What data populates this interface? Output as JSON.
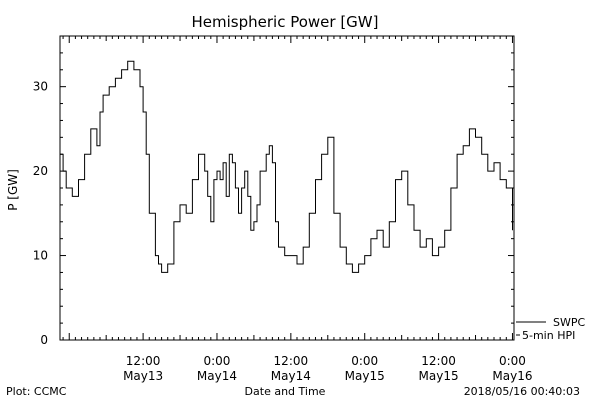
{
  "chart_data": {
    "type": "line",
    "title": "Hemispheric Power [GW]",
    "xlabel": "Date and Time",
    "ylabel": "P [GW]",
    "ylim": [
      0,
      36
    ],
    "yticks": [
      0,
      10,
      20,
      30
    ],
    "xlim": [
      "2018-05-12 22:30",
      "2018-05-16 00:15"
    ],
    "xticks": [
      {
        "t": "2018-05-13 12:00",
        "line1": "12:00",
        "line2": "May13"
      },
      {
        "t": "2018-05-14 00:00",
        "line1": "0:00",
        "line2": "May14"
      },
      {
        "t": "2018-05-14 12:00",
        "line1": "12:00",
        "line2": "May14"
      },
      {
        "t": "2018-05-15 00:00",
        "line1": "0:00",
        "line2": "May15"
      },
      {
        "t": "2018-05-15 12:00",
        "line1": "12:00",
        "line2": "May15"
      },
      {
        "t": "2018-05-16 00:00",
        "line1": "0:00",
        "line2": "May16"
      }
    ],
    "grid": false,
    "legend": {
      "placement": "bottom-right",
      "entries": [
        "SWPC",
        "5-min HPI"
      ]
    },
    "series": [
      {
        "name": "SWPC",
        "style": "step",
        "x": [
          "2018-05-12 22:30",
          "2018-05-12 23:00",
          "2018-05-12 23:30",
          "2018-05-13 00:30",
          "2018-05-13 01:30",
          "2018-05-13 02:30",
          "2018-05-13 03:30",
          "2018-05-13 04:30",
          "2018-05-13 05:00",
          "2018-05-13 05:30",
          "2018-05-13 06:30",
          "2018-05-13 07:30",
          "2018-05-13 08:30",
          "2018-05-13 09:30",
          "2018-05-13 10:30",
          "2018-05-13 11:30",
          "2018-05-13 12:00",
          "2018-05-13 12:30",
          "2018-05-13 13:00",
          "2018-05-13 14:00",
          "2018-05-13 14:30",
          "2018-05-13 15:00",
          "2018-05-13 16:00",
          "2018-05-13 17:00",
          "2018-05-13 18:00",
          "2018-05-13 19:00",
          "2018-05-13 20:00",
          "2018-05-13 21:00",
          "2018-05-13 22:00",
          "2018-05-13 22:30",
          "2018-05-13 23:00",
          "2018-05-13 23:30",
          "2018-05-14 00:00",
          "2018-05-14 00:30",
          "2018-05-14 01:00",
          "2018-05-14 01:30",
          "2018-05-14 02:00",
          "2018-05-14 02:30",
          "2018-05-14 03:00",
          "2018-05-14 03:30",
          "2018-05-14 04:00",
          "2018-05-14 04:30",
          "2018-05-14 05:00",
          "2018-05-14 05:30",
          "2018-05-14 06:00",
          "2018-05-14 06:30",
          "2018-05-14 07:00",
          "2018-05-14 08:00",
          "2018-05-14 08:30",
          "2018-05-14 09:00",
          "2018-05-14 09:30",
          "2018-05-14 10:00",
          "2018-05-14 11:00",
          "2018-05-14 12:00",
          "2018-05-14 13:00",
          "2018-05-14 14:00",
          "2018-05-14 15:00",
          "2018-05-14 16:00",
          "2018-05-14 17:00",
          "2018-05-14 18:00",
          "2018-05-14 19:00",
          "2018-05-14 20:00",
          "2018-05-14 21:00",
          "2018-05-14 22:00",
          "2018-05-14 23:00",
          "2018-05-15 00:00",
          "2018-05-15 01:00",
          "2018-05-15 02:00",
          "2018-05-15 03:00",
          "2018-05-15 04:00",
          "2018-05-15 05:00",
          "2018-05-15 06:00",
          "2018-05-15 07:00",
          "2018-05-15 08:00",
          "2018-05-15 09:00",
          "2018-05-15 10:00",
          "2018-05-15 11:00",
          "2018-05-15 12:00",
          "2018-05-15 13:00",
          "2018-05-15 14:00",
          "2018-05-15 15:00",
          "2018-05-15 16:00",
          "2018-05-15 17:00",
          "2018-05-15 18:00",
          "2018-05-15 19:00",
          "2018-05-15 20:00",
          "2018-05-15 21:00",
          "2018-05-15 22:00",
          "2018-05-15 23:00",
          "2018-05-16 00:00"
        ],
        "y": [
          22,
          20,
          18,
          17,
          19,
          22,
          25,
          23,
          27,
          29,
          30,
          31,
          32,
          33,
          32,
          30,
          27,
          22,
          15,
          10,
          9,
          8,
          9,
          14,
          16,
          15,
          19,
          22,
          20,
          17,
          14,
          19,
          20,
          19,
          21,
          17,
          22,
          21,
          18,
          15,
          18,
          20,
          17,
          13,
          14,
          16,
          20,
          22,
          23,
          21,
          14,
          11,
          10,
          10,
          9,
          11,
          15,
          19,
          22,
          24,
          15,
          11,
          9,
          8,
          9,
          10,
          12,
          13,
          11,
          14,
          19,
          20,
          16,
          13,
          11,
          12,
          10,
          11,
          13,
          18,
          22,
          23,
          25,
          24,
          22,
          20,
          21,
          19,
          18,
          13
        ]
      },
      {
        "name": "5-min HPI",
        "style": "line",
        "x": [],
        "y": []
      }
    ]
  },
  "footer": {
    "left": "Plot: CCMC",
    "center": "Date and Time",
    "right": "2018/05/16 00:40:03"
  }
}
